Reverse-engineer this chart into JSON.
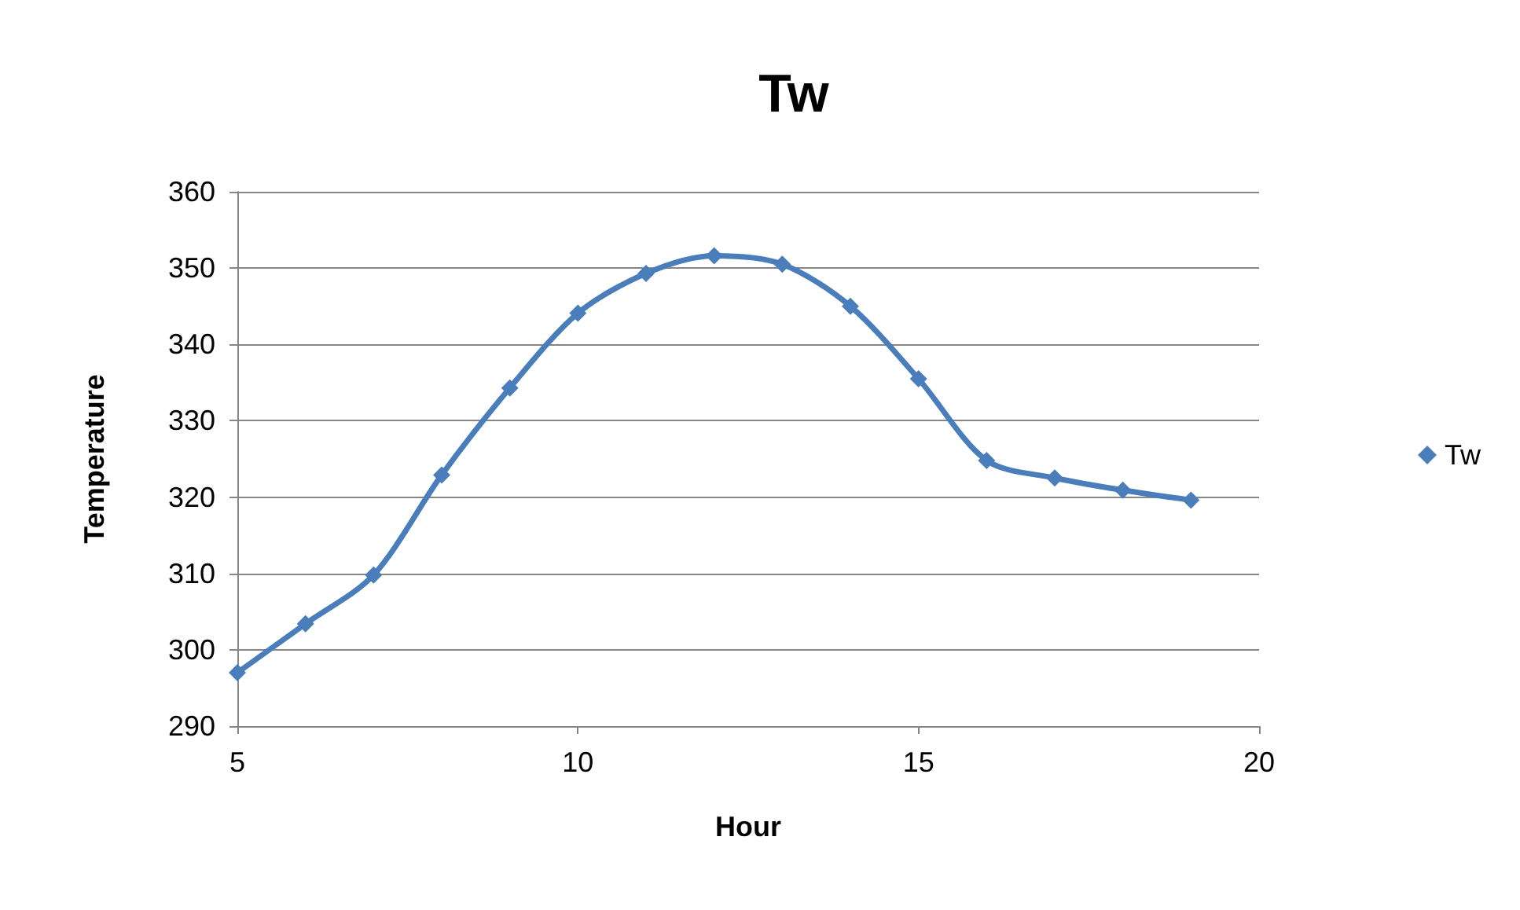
{
  "chart_data": {
    "type": "line",
    "title": "Tw",
    "xlabel": "Hour",
    "ylabel": "Temperature",
    "x": [
      5,
      6,
      7,
      8,
      9,
      10,
      11,
      12,
      13,
      14,
      15,
      16,
      17,
      18,
      19
    ],
    "series": [
      {
        "name": "Tw",
        "color": "#4a7ebb",
        "values": [
          297,
          303.4,
          309.8,
          322.9,
          334.3,
          344.1,
          349.3,
          351.6,
          350.5,
          345,
          335.5,
          324.8,
          322.5,
          320.9,
          319.6
        ]
      }
    ],
    "xlim": [
      5,
      20
    ],
    "xticks": [
      5,
      10,
      15,
      20
    ],
    "ylim": [
      290,
      360
    ],
    "yticks": [
      290,
      300,
      310,
      320,
      330,
      340,
      350,
      360
    ],
    "grid": "y",
    "legend": "right",
    "marker": "diamond",
    "line_style": "solid"
  }
}
